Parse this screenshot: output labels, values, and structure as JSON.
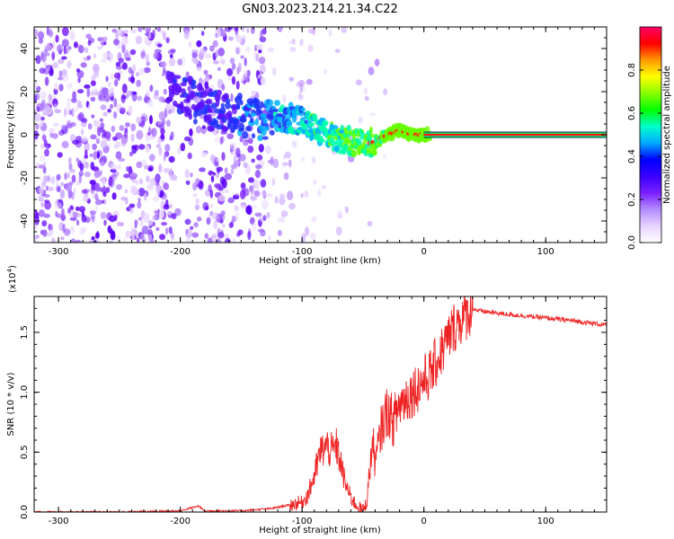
{
  "title": "GN03.2023.214.21.34.C22",
  "chart_data": [
    {
      "type": "heatmap",
      "xlabel": "Height of straight line (km)",
      "ylabel": "Frequency (Hz)",
      "xlim": [
        -320,
        150
      ],
      "ylim": [
        -50,
        50
      ],
      "xticks": [
        -300,
        -200,
        -100,
        0,
        100
      ],
      "xtick_labels": [
        "-300",
        "-200",
        "-100",
        "0",
        "100"
      ],
      "yticks": [
        -40,
        -20,
        0,
        20,
        40
      ],
      "ytick_labels": [
        "-40",
        "-20",
        "0",
        "20",
        "40"
      ],
      "colorbar": {
        "label": "Normalized spectral amplitude",
        "range": [
          0,
          1
        ],
        "ticks": [
          0.0,
          0.2,
          0.4,
          0.6,
          0.8
        ],
        "tick_labels": [
          "0.0",
          "0.2",
          "0.4",
          "0.6",
          "0.8"
        ],
        "colors": [
          "#ffffff",
          "#e6d2ff",
          "#b48cff",
          "#7a1fff",
          "#3a00ff",
          "#0000ff",
          "#00aaff",
          "#00ffcc",
          "#00ff00",
          "#88ff00",
          "#ffff00",
          "#ff9900",
          "#ff0000",
          "#ff0066"
        ]
      },
      "ridge": {
        "x": [
          -200,
          -180,
          -160,
          -140,
          -120,
          -110,
          -100,
          -90,
          -80,
          -70,
          -60,
          -50,
          -45,
          -40,
          -30,
          -20,
          -15,
          -10,
          0,
          10,
          50,
          100,
          150
        ],
        "y": [
          20,
          12,
          10,
          8,
          6,
          8,
          6,
          3,
          1,
          -2,
          -3,
          -4,
          -4,
          -3,
          0,
          2,
          1,
          0,
          0,
          0,
          0,
          0,
          0
        ]
      },
      "grid": false
    },
    {
      "type": "line",
      "xlabel": "Height of straight line (km)",
      "ylabel": "SNR (10 * v/v)",
      "ylabel_multiplier": "(x10",
      "ylabel_multiplier_exp": "4",
      "ylabel_multiplier_close": ")",
      "xlim": [
        -320,
        150
      ],
      "ylim": [
        0,
        1.8
      ],
      "xticks": [
        -300,
        -200,
        -100,
        0,
        100
      ],
      "xtick_labels": [
        "-300",
        "-200",
        "-100",
        "0",
        "100"
      ],
      "yticks": [
        0,
        0.5,
        1.0,
        1.5
      ],
      "ytick_labels": [
        "0.0",
        "0.5",
        "1.0",
        "1.5"
      ],
      "color": "#ee2222",
      "series": [
        {
          "x": [
            -320,
            -250,
            -200,
            -185,
            -180,
            -150,
            -125,
            -110,
            -100,
            -95,
            -90,
            -85,
            -80,
            -75,
            -72,
            -68,
            -65,
            -60,
            -55,
            -50,
            -47,
            -45,
            -42,
            -40,
            -35,
            -30,
            -25,
            -20,
            -15,
            -10,
            -5,
            0,
            5,
            10,
            15,
            20,
            25,
            30,
            35,
            40,
            45,
            60,
            80,
            100,
            120,
            150
          ],
          "y": [
            0.0,
            0.0,
            0.01,
            0.05,
            0.01,
            0.01,
            0.03,
            0.06,
            0.08,
            0.15,
            0.3,
            0.5,
            0.55,
            0.5,
            0.55,
            0.4,
            0.25,
            0.12,
            0.05,
            0.02,
            0.08,
            0.3,
            0.6,
            0.4,
            0.7,
            0.85,
            0.75,
            0.9,
            0.95,
            1.0,
            1.05,
            1.1,
            1.15,
            1.25,
            1.35,
            1.45,
            1.55,
            1.6,
            1.65,
            1.7,
            1.68,
            1.66,
            1.64,
            1.62,
            1.6,
            1.56
          ]
        }
      ],
      "grid": false
    }
  ]
}
